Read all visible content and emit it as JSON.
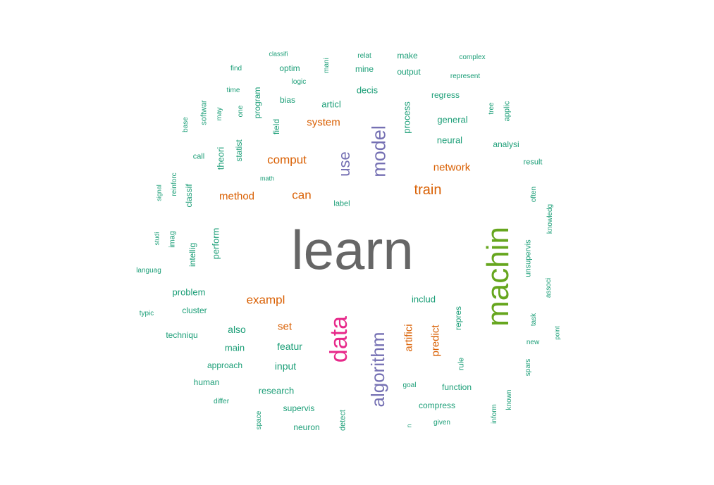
{
  "palette": {
    "teal": "#1b9e77",
    "orange": "#d95f02",
    "purple": "#7570b3",
    "pink": "#e7298a",
    "green": "#66a61e",
    "gray": "#666666"
  },
  "words": [
    {
      "text": "learn",
      "color": "gray",
      "rotated": false
    },
    {
      "text": "machin",
      "color": "green",
      "rotated": true
    },
    {
      "text": "data",
      "color": "pink",
      "rotated": true
    },
    {
      "text": "algorithm",
      "color": "purple",
      "rotated": true
    },
    {
      "text": "model",
      "color": "purple",
      "rotated": true
    },
    {
      "text": "use",
      "color": "purple",
      "rotated": true
    },
    {
      "text": "train",
      "color": "orange",
      "rotated": false
    },
    {
      "text": "comput",
      "color": "orange",
      "rotated": false
    },
    {
      "text": "exampl",
      "color": "orange",
      "rotated": false
    },
    {
      "text": "can",
      "color": "orange",
      "rotated": false
    },
    {
      "text": "method",
      "color": "orange",
      "rotated": false
    },
    {
      "text": "network",
      "color": "orange",
      "rotated": false
    },
    {
      "text": "system",
      "color": "orange",
      "rotated": false
    },
    {
      "text": "set",
      "color": "orange",
      "rotated": false
    },
    {
      "text": "artifici",
      "color": "orange",
      "rotated": true
    },
    {
      "text": "predict",
      "color": "orange",
      "rotated": true
    },
    {
      "text": "classifi",
      "color": "teal",
      "rotated": false
    },
    {
      "text": "mani",
      "color": "teal",
      "rotated": true
    },
    {
      "text": "relat",
      "color": "teal",
      "rotated": false
    },
    {
      "text": "make",
      "color": "teal",
      "rotated": false
    },
    {
      "text": "complex",
      "color": "teal",
      "rotated": false
    },
    {
      "text": "find",
      "color": "teal",
      "rotated": false
    },
    {
      "text": "optim",
      "color": "teal",
      "rotated": false
    },
    {
      "text": "mine",
      "color": "teal",
      "rotated": false
    },
    {
      "text": "output",
      "color": "teal",
      "rotated": false
    },
    {
      "text": "represent",
      "color": "teal",
      "rotated": false
    },
    {
      "text": "logic",
      "color": "teal",
      "rotated": false
    },
    {
      "text": "time",
      "color": "teal",
      "rotated": false
    },
    {
      "text": "program",
      "color": "teal",
      "rotated": true
    },
    {
      "text": "decis",
      "color": "teal",
      "rotated": false
    },
    {
      "text": "regress",
      "color": "teal",
      "rotated": false
    },
    {
      "text": "bias",
      "color": "teal",
      "rotated": false
    },
    {
      "text": "articl",
      "color": "teal",
      "rotated": false
    },
    {
      "text": "process",
      "color": "teal",
      "rotated": true
    },
    {
      "text": "tree",
      "color": "teal",
      "rotated": true
    },
    {
      "text": "applic",
      "color": "teal",
      "rotated": true
    },
    {
      "text": "softwar",
      "color": "teal",
      "rotated": true
    },
    {
      "text": "may",
      "color": "teal",
      "rotated": true
    },
    {
      "text": "one",
      "color": "teal",
      "rotated": true
    },
    {
      "text": "general",
      "color": "teal",
      "rotated": false
    },
    {
      "text": "base",
      "color": "teal",
      "rotated": true
    },
    {
      "text": "field",
      "color": "teal",
      "rotated": true
    },
    {
      "text": "neural",
      "color": "teal",
      "rotated": false
    },
    {
      "text": "analysi",
      "color": "teal",
      "rotated": false
    },
    {
      "text": "theori",
      "color": "teal",
      "rotated": true
    },
    {
      "text": "statist",
      "color": "teal",
      "rotated": true
    },
    {
      "text": "call",
      "color": "teal",
      "rotated": false
    },
    {
      "text": "result",
      "color": "teal",
      "rotated": false
    },
    {
      "text": "reinforc",
      "color": "teal",
      "rotated": true
    },
    {
      "text": "math",
      "color": "teal",
      "rotated": false
    },
    {
      "text": "signal",
      "color": "teal",
      "rotated": true
    },
    {
      "text": "classif",
      "color": "teal",
      "rotated": true
    },
    {
      "text": "label",
      "color": "teal",
      "rotated": false
    },
    {
      "text": "often",
      "color": "teal",
      "rotated": true
    },
    {
      "text": "knowledg",
      "color": "teal",
      "rotated": true
    },
    {
      "text": "studi",
      "color": "teal",
      "rotated": true
    },
    {
      "text": "imag",
      "color": "teal",
      "rotated": true
    },
    {
      "text": "perform",
      "color": "teal",
      "rotated": true
    },
    {
      "text": "intellig",
      "color": "teal",
      "rotated": true
    },
    {
      "text": "languag",
      "color": "teal",
      "rotated": false
    },
    {
      "text": "unsupervis",
      "color": "teal",
      "rotated": true
    },
    {
      "text": "associ",
      "color": "teal",
      "rotated": true
    },
    {
      "text": "problem",
      "color": "teal",
      "rotated": false
    },
    {
      "text": "includ",
      "color": "teal",
      "rotated": false
    },
    {
      "text": "cluster",
      "color": "teal",
      "rotated": false
    },
    {
      "text": "typic",
      "color": "teal",
      "rotated": false
    },
    {
      "text": "repres",
      "color": "teal",
      "rotated": true
    },
    {
      "text": "task",
      "color": "teal",
      "rotated": true
    },
    {
      "text": "techniqu",
      "color": "teal",
      "rotated": false
    },
    {
      "text": "also",
      "color": "teal",
      "rotated": false
    },
    {
      "text": "point",
      "color": "teal",
      "rotated": true
    },
    {
      "text": "new",
      "color": "teal",
      "rotated": false
    },
    {
      "text": "main",
      "color": "teal",
      "rotated": false
    },
    {
      "text": "featur",
      "color": "teal",
      "rotated": false
    },
    {
      "text": "approach",
      "color": "teal",
      "rotated": false
    },
    {
      "text": "input",
      "color": "teal",
      "rotated": false
    },
    {
      "text": "rule",
      "color": "teal",
      "rotated": true
    },
    {
      "text": "spars",
      "color": "teal",
      "rotated": true
    },
    {
      "text": "human",
      "color": "teal",
      "rotated": false
    },
    {
      "text": "goal",
      "color": "teal",
      "rotated": false
    },
    {
      "text": "function",
      "color": "teal",
      "rotated": false
    },
    {
      "text": "research",
      "color": "teal",
      "rotated": false
    },
    {
      "text": "known",
      "color": "teal",
      "rotated": true
    },
    {
      "text": "differ",
      "color": "teal",
      "rotated": false
    },
    {
      "text": "supervis",
      "color": "teal",
      "rotated": false
    },
    {
      "text": "compress",
      "color": "teal",
      "rotated": false
    },
    {
      "text": "inform",
      "color": "teal",
      "rotated": true
    },
    {
      "text": "space",
      "color": "teal",
      "rotated": true
    },
    {
      "text": "detect",
      "color": "teal",
      "rotated": true
    },
    {
      "text": "given",
      "color": "teal",
      "rotated": false
    },
    {
      "text": "neuron",
      "color": "teal",
      "rotated": false
    },
    {
      "text": "n",
      "color": "teal",
      "rotated": true
    }
  ]
}
